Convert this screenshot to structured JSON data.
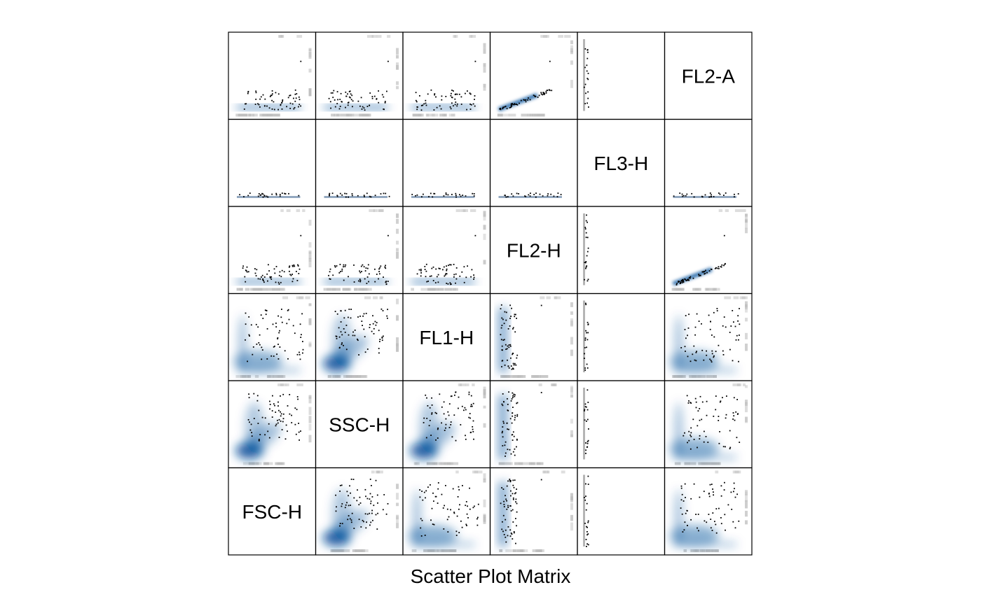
{
  "chart_data": {
    "type": "scatter",
    "subtype": "scatter-plot-matrix",
    "xlabel": "Scatter Plot Matrix",
    "variables": [
      "FSC-H",
      "SSC-H",
      "FL1-H",
      "FL2-H",
      "FL3-H",
      "FL2-A"
    ],
    "variable_order_note": "index 0 is the bottom-left diagonal cell, index 5 is the top-right diagonal cell",
    "density_color": "#08519c",
    "point_color": "#000000",
    "rug_color": "#bdbdbd",
    "grid": false,
    "legend": "none",
    "panel_patterns": [
      [
        "",
        "fan",
        "spread",
        "stripe",
        "needle",
        "spread"
      ],
      [
        "fan",
        "",
        "fan",
        "stripe",
        "needle",
        "spread"
      ],
      [
        "spread",
        "fan",
        "",
        "stripe",
        "needle",
        "spread"
      ],
      [
        "flat",
        "flat",
        "flat",
        "",
        "needle",
        "line"
      ],
      [
        "floor",
        "floor",
        "floor",
        "floor",
        "",
        "floor"
      ],
      [
        "flat",
        "flat",
        "flat",
        "line",
        "needle",
        ""
      ]
    ]
  }
}
